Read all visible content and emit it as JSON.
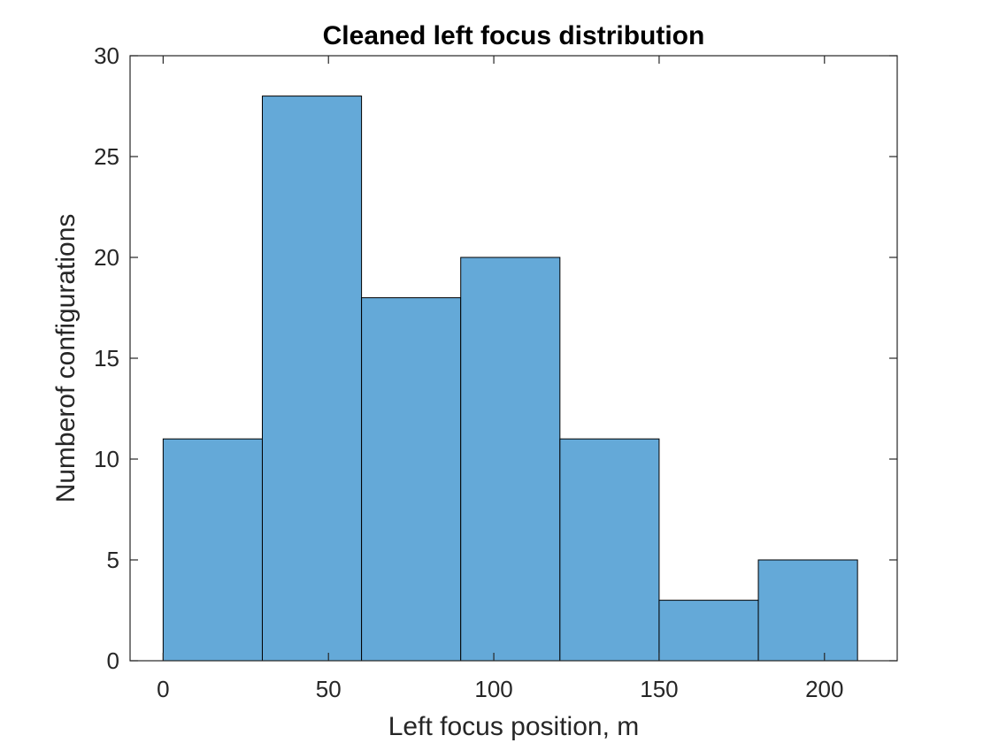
{
  "chart_data": {
    "type": "bar",
    "title": "Cleaned left focus distribution",
    "xlabel": "Left focus position, m",
    "ylabel": "Numberof configurations",
    "bin_edges": [
      0,
      30,
      60,
      90,
      120,
      150,
      180,
      210
    ],
    "values": [
      11,
      28,
      18,
      20,
      11,
      3,
      5
    ],
    "xlim": [
      -10,
      222
    ],
    "ylim": [
      0,
      30
    ],
    "xticks": [
      0,
      50,
      100,
      150,
      200
    ],
    "yticks": [
      0,
      5,
      10,
      15,
      20,
      25,
      30
    ],
    "xtick_labels": [
      "0",
      "50",
      "100",
      "150",
      "200"
    ],
    "ytick_labels": [
      "0",
      "5",
      "10",
      "15",
      "20",
      "25",
      "30"
    ],
    "grid": false,
    "bar_color": "#64a9d8",
    "edge_color": "#000000"
  }
}
